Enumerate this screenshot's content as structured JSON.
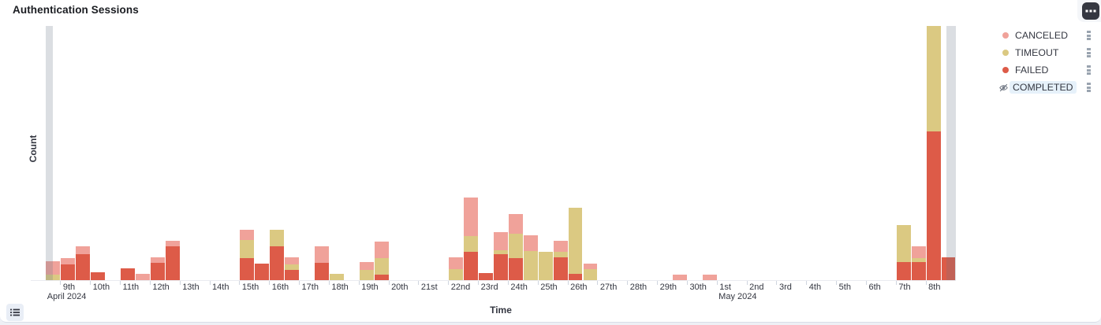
{
  "panel": {
    "title": "Authentication Sessions"
  },
  "legend": {
    "items": [
      {
        "label": "CANCELED",
        "color": "#F0A29A",
        "hidden": false,
        "highlighted": false
      },
      {
        "label": "TIMEOUT",
        "color": "#DBC982",
        "hidden": false,
        "highlighted": false
      },
      {
        "label": "FAILED",
        "color": "#DD5B48",
        "hidden": false,
        "highlighted": false
      },
      {
        "label": "COMPLETED",
        "color": null,
        "hidden": true,
        "highlighted": true
      }
    ]
  },
  "chart_data": {
    "type": "bar",
    "stacked": true,
    "title": "Authentication Sessions",
    "xlabel": "Time",
    "ylabel": "Count",
    "x_domain": "2024-04-08 00:00 to 2024-05-09 00:00, 12-hour buckets",
    "y_axis_tick_labels": "none shown",
    "value_units": "estimated (no numeric y labels visible); 1 unit = 1 px of bar height",
    "ylim": [
      0,
      323
    ],
    "grid": false,
    "legend_position": "right",
    "series_order_bottom_to_top": [
      "FAILED",
      "TIMEOUT",
      "CANCELED"
    ],
    "colors": {
      "CANCELED": "#F0A29A",
      "TIMEOUT": "#DBC982",
      "FAILED": "#DD5B48",
      "partial_bucket_overlay": "rgba(106,117,133,0.24)"
    },
    "x_ticks": {
      "note": "one tick per day, tick 1 = April 9 2024",
      "labels": [
        "9th",
        "10th",
        "11th",
        "12th",
        "13th",
        "14th",
        "15th",
        "16th",
        "17th",
        "18th",
        "19th",
        "20th",
        "21st",
        "22nd",
        "23rd",
        "24th",
        "25th",
        "26th",
        "27th",
        "28th",
        "29th",
        "30th",
        "1st",
        "2nd",
        "3rd",
        "4th",
        "5th",
        "6th",
        "7th",
        "8th"
      ]
    },
    "month_labels": [
      {
        "label": "April 2024",
        "day_anchor": 0.55
      },
      {
        "label": "May 2024",
        "day_anchor": 23.05
      }
    ],
    "bars": [
      {
        "time": "Apr 8 12:00",
        "bucket": 1,
        "FAILED": 0,
        "TIMEOUT": 7,
        "CANCELED": 17
      },
      {
        "time": "Apr 9 00:00",
        "bucket": 2,
        "FAILED": 20,
        "TIMEOUT": 0,
        "CANCELED": 8
      },
      {
        "time": "Apr 9 12:00",
        "bucket": 3,
        "FAILED": 33,
        "TIMEOUT": 0,
        "CANCELED": 10
      },
      {
        "time": "Apr 10 00:00",
        "bucket": 4,
        "FAILED": 10,
        "TIMEOUT": 0,
        "CANCELED": 0
      },
      {
        "time": "Apr 11 00:00",
        "bucket": 6,
        "FAILED": 15,
        "TIMEOUT": 0,
        "CANCELED": 0
      },
      {
        "time": "Apr 11 12:00",
        "bucket": 7,
        "FAILED": 0,
        "TIMEOUT": 0,
        "CANCELED": 8
      },
      {
        "time": "Apr 12 00:00",
        "bucket": 8,
        "FAILED": 22,
        "TIMEOUT": 0,
        "CANCELED": 7
      },
      {
        "time": "Apr 12 12:00",
        "bucket": 9,
        "FAILED": 43,
        "TIMEOUT": 0,
        "CANCELED": 7
      },
      {
        "time": "Apr 15 00:00",
        "bucket": 14,
        "FAILED": 28,
        "TIMEOUT": 23,
        "CANCELED": 13
      },
      {
        "time": "Apr 15 12:00",
        "bucket": 15,
        "FAILED": 21,
        "TIMEOUT": 0,
        "CANCELED": 0
      },
      {
        "time": "Apr 16 00:00",
        "bucket": 16,
        "FAILED": 43,
        "TIMEOUT": 21,
        "CANCELED": 0
      },
      {
        "time": "Apr 16 12:00",
        "bucket": 17,
        "FAILED": 13,
        "TIMEOUT": 7,
        "CANCELED": 9
      },
      {
        "time": "Apr 17 12:00",
        "bucket": 19,
        "FAILED": 22,
        "TIMEOUT": 0,
        "CANCELED": 21
      },
      {
        "time": "Apr 18 00:00",
        "bucket": 20,
        "FAILED": 0,
        "TIMEOUT": 8,
        "CANCELED": 0
      },
      {
        "time": "Apr 19 00:00",
        "bucket": 22,
        "FAILED": 0,
        "TIMEOUT": 13,
        "CANCELED": 10
      },
      {
        "time": "Apr 19 12:00",
        "bucket": 23,
        "FAILED": 7,
        "TIMEOUT": 21,
        "CANCELED": 21
      },
      {
        "time": "Apr 22 00:00",
        "bucket": 28,
        "FAILED": 0,
        "TIMEOUT": 14,
        "CANCELED": 15
      },
      {
        "time": "Apr 22 12:00",
        "bucket": 29,
        "FAILED": 36,
        "TIMEOUT": 20,
        "CANCELED": 49
      },
      {
        "time": "Apr 23 00:00",
        "bucket": 30,
        "FAILED": 9,
        "TIMEOUT": 0,
        "CANCELED": 0
      },
      {
        "time": "Apr 23 12:00",
        "bucket": 31,
        "FAILED": 33,
        "TIMEOUT": 5,
        "CANCELED": 23
      },
      {
        "time": "Apr 24 00:00",
        "bucket": 32,
        "FAILED": 28,
        "TIMEOUT": 31,
        "CANCELED": 25
      },
      {
        "time": "Apr 24 12:00",
        "bucket": 33,
        "FAILED": 0,
        "TIMEOUT": 37,
        "CANCELED": 20
      },
      {
        "time": "Apr 25 00:00",
        "bucket": 34,
        "FAILED": 0,
        "TIMEOUT": 36,
        "CANCELED": 0
      },
      {
        "time": "Apr 25 12:00",
        "bucket": 35,
        "FAILED": 29,
        "TIMEOUT": 7,
        "CANCELED": 14
      },
      {
        "time": "Apr 26 00:00",
        "bucket": 36,
        "FAILED": 8,
        "TIMEOUT": 84,
        "CANCELED": 0
      },
      {
        "time": "Apr 26 12:00",
        "bucket": 37,
        "FAILED": 0,
        "TIMEOUT": 14,
        "CANCELED": 7
      },
      {
        "time": "Apr 29 12:00",
        "bucket": 43,
        "FAILED": 0,
        "TIMEOUT": 0,
        "CANCELED": 7
      },
      {
        "time": "Apr 30 12:00",
        "bucket": 45,
        "FAILED": 0,
        "TIMEOUT": 0,
        "CANCELED": 7
      },
      {
        "time": "May 7 00:00",
        "bucket": 58,
        "FAILED": 23,
        "TIMEOUT": 47,
        "CANCELED": 0
      },
      {
        "time": "May 7 12:00",
        "bucket": 59,
        "FAILED": 23,
        "TIMEOUT": 5,
        "CANCELED": 15
      },
      {
        "time": "May 8 00:00",
        "bucket": 60,
        "FAILED": 189,
        "TIMEOUT": 134,
        "CANCELED": 0
      },
      {
        "time": "May 8 12:00",
        "bucket": 61,
        "FAILED": 29,
        "TIMEOUT": 0,
        "CANCELED": 0
      }
    ],
    "partial_bucket_overlays": [
      {
        "from_day": 0.5,
        "to_day": 0.74
      },
      {
        "from_day": 30.68,
        "to_day": 31.0
      }
    ]
  }
}
